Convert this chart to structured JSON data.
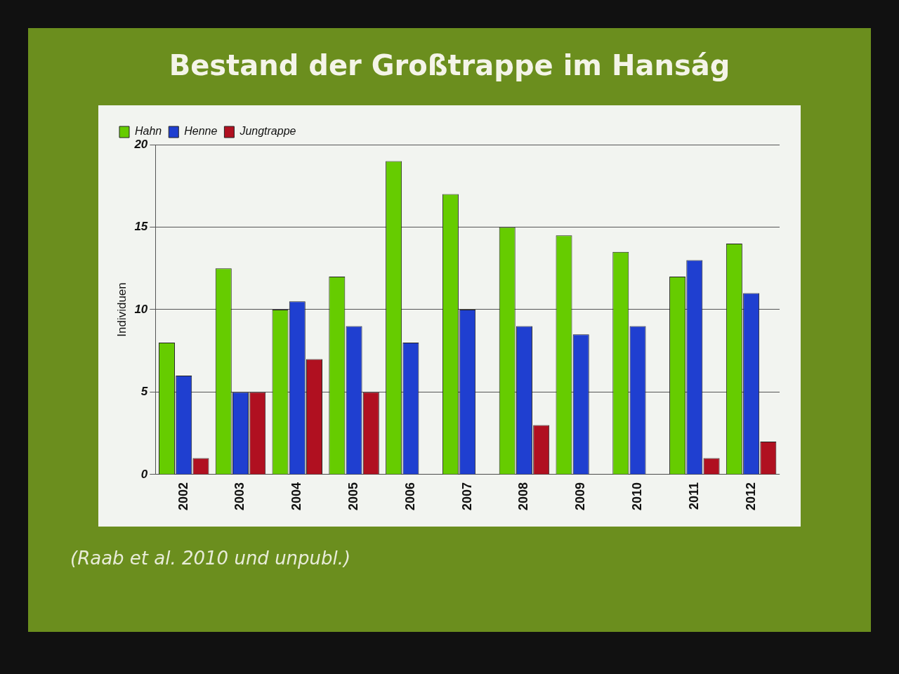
{
  "chart_data": {
    "type": "bar",
    "title": "Bestand der Großtrappe im Hanság",
    "ylabel": "Individuen",
    "categories": [
      "2002",
      "2003",
      "2004",
      "2005",
      "2006",
      "2007",
      "2008",
      "2009",
      "2010",
      "2011",
      "2012"
    ],
    "series": [
      {
        "name": "Hahn",
        "color": "#66cc00",
        "values": [
          8,
          12.5,
          10,
          12,
          19,
          17,
          15,
          14.5,
          13.5,
          12,
          14
        ]
      },
      {
        "name": "Henne",
        "color": "#1f3fd0",
        "values": [
          6,
          5,
          10.5,
          9,
          8,
          10,
          9,
          8.5,
          9,
          13,
          11
        ]
      },
      {
        "name": "Jungtrappe",
        "color": "#b01020",
        "values": [
          1,
          5,
          7,
          5,
          null,
          null,
          3,
          null,
          null,
          1,
          2
        ]
      }
    ],
    "ylim": [
      0,
      20
    ],
    "yticks": [
      0,
      5,
      10,
      15,
      20
    ],
    "grid": "y",
    "legend": "top left",
    "annotations": [
      "(Raab et al. 2010 und unpubl.)"
    ]
  }
}
